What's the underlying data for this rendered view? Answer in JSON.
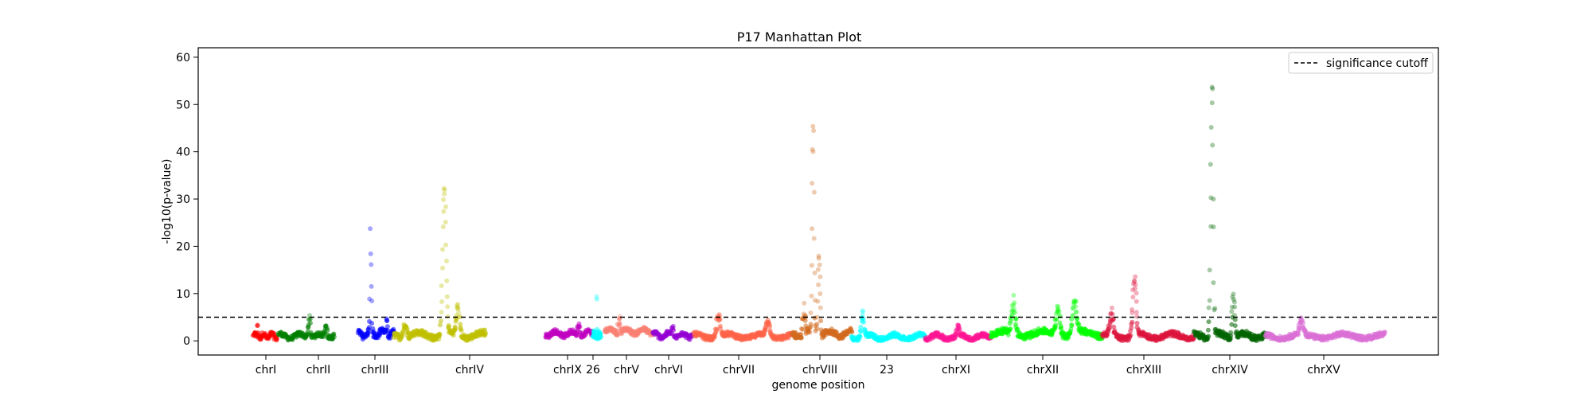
{
  "chart_data": {
    "type": "scatter",
    "title": "P17 Manhattan Plot",
    "xlabel": "genome position",
    "ylabel": "-log10(p-value)",
    "ylim": [
      -3,
      62
    ],
    "yticks": [
      0,
      10,
      20,
      30,
      40,
      50,
      60
    ],
    "grid": false,
    "legend": {
      "placement": "top-right",
      "entries": [
        {
          "label": "significance cutoff",
          "style": "dashed",
          "color": "#000000"
        }
      ]
    },
    "significance_cutoff": 5,
    "chromosomes": [
      {
        "label": "chrI",
        "color": "#ff0000",
        "base": 1.0,
        "noise": 0.8,
        "peaks": [
          [
            0.2,
            2.5
          ]
        ]
      },
      {
        "label": "chrII",
        "color": "#008000",
        "base": 1.0,
        "noise": 0.8,
        "peaks": [
          [
            0.55,
            4.5
          ],
          [
            0.85,
            2.5
          ]
        ]
      },
      {
        "label": "chrIII",
        "color": "#0000ff",
        "base": 1.5,
        "noise": 1.0,
        "peaks": [
          [
            0.35,
            21
          ],
          [
            0.8,
            3.5
          ]
        ]
      },
      {
        "label": "chrIV",
        "color": "#bfbf00",
        "base": 1.2,
        "noise": 1.0,
        "peaks": [
          [
            0.12,
            3.5
          ],
          [
            0.55,
            31
          ],
          [
            0.7,
            6
          ]
        ]
      },
      {
        "label": "chrIX",
        "color": "#bf00bf",
        "base": 1.5,
        "noise": 0.8,
        "peaks": [
          [
            0.7,
            2.5
          ]
        ]
      },
      {
        "label": "26",
        "color": "#00ffff",
        "base": 1.2,
        "noise": 0.8,
        "peaks": [
          [
            0.5,
            12
          ]
        ]
      },
      {
        "label": "chrV",
        "color": "#fa8072",
        "base": 2.0,
        "noise": 0.8,
        "peaks": [
          [
            0.3,
            4.5
          ]
        ]
      },
      {
        "label": "chrVI",
        "color": "#9400d3",
        "base": 1.2,
        "noise": 0.8,
        "peaks": [
          [
            0.5,
            2.5
          ]
        ]
      },
      {
        "label": "chrVII",
        "color": "#ff6347",
        "base": 1.0,
        "noise": 0.8,
        "peaks": [
          [
            0.25,
            5
          ],
          [
            0.75,
            3
          ]
        ]
      },
      {
        "label": "chrVIII",
        "color": "#d2691e",
        "base": 1.5,
        "noise": 1.0,
        "peaks": [
          [
            0.2,
            6
          ],
          [
            0.35,
            44
          ],
          [
            0.45,
            17
          ]
        ]
      },
      {
        "label": "23",
        "color": "#00ffff",
        "base": 0.8,
        "noise": 0.8,
        "peaks": [
          [
            0.15,
            6
          ]
        ]
      },
      {
        "label": "chrXI",
        "color": "#ff1493",
        "base": 0.8,
        "noise": 0.8,
        "peaks": [
          [
            0.5,
            2
          ]
        ]
      },
      {
        "label": "chrXII",
        "color": "#00ff00",
        "base": 1.5,
        "noise": 1.0,
        "peaks": [
          [
            0.2,
            7
          ],
          [
            0.6,
            6
          ],
          [
            0.75,
            7
          ]
        ]
      },
      {
        "label": "chrXIII",
        "color": "#dc143c",
        "base": 1.0,
        "noise": 0.9,
        "peaks": [
          [
            0.1,
            5
          ],
          [
            0.35,
            12
          ]
        ]
      },
      {
        "label": "chrXIV",
        "color": "#006400",
        "base": 1.0,
        "noise": 1.0,
        "peaks": [
          [
            0.25,
            57
          ],
          [
            0.55,
            9
          ]
        ]
      },
      {
        "label": "chrXV",
        "color": "#da70d6",
        "base": 1.0,
        "noise": 0.8,
        "peaks": [
          [
            0.3,
            3
          ]
        ]
      }
    ]
  }
}
